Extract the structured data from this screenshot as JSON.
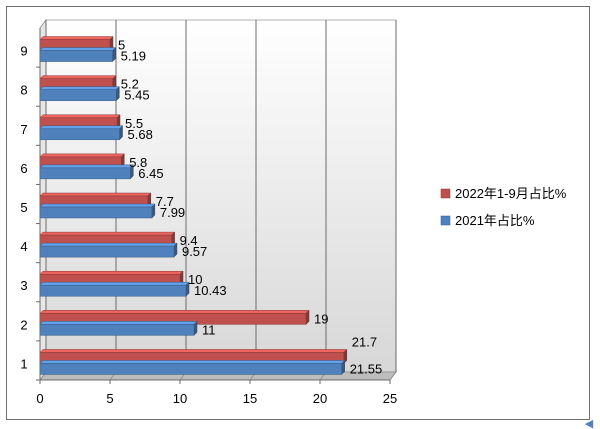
{
  "chart_data": {
    "type": "bar",
    "orientation": "horizontal",
    "style": "3d",
    "categories": [
      "1",
      "2",
      "3",
      "4",
      "5",
      "6",
      "7",
      "8",
      "9"
    ],
    "series": [
      {
        "name": "2022年1-9月占比%",
        "color": "#c0504d",
        "values": [
          21.7,
          19,
          10,
          9.4,
          7.7,
          5.8,
          5.5,
          5.2,
          5
        ]
      },
      {
        "name": "2021年占比%",
        "color": "#4f81bd",
        "values": [
          21.55,
          11,
          10.43,
          9.57,
          7.99,
          6.45,
          5.68,
          5.45,
          5.19
        ]
      }
    ],
    "xlim": [
      0,
      25
    ],
    "x_ticks": [
      "0",
      "5",
      "10",
      "15",
      "20",
      "25"
    ],
    "grid": true,
    "legend_position": "right",
    "title": "",
    "xlabel": "",
    "ylabel": ""
  },
  "colors": {
    "wall_top": "#ffffff",
    "wall_bottom": "#d7d7d7",
    "gridline": "#6b6b6b"
  },
  "decoration": {
    "corner_arrow": "◀"
  }
}
